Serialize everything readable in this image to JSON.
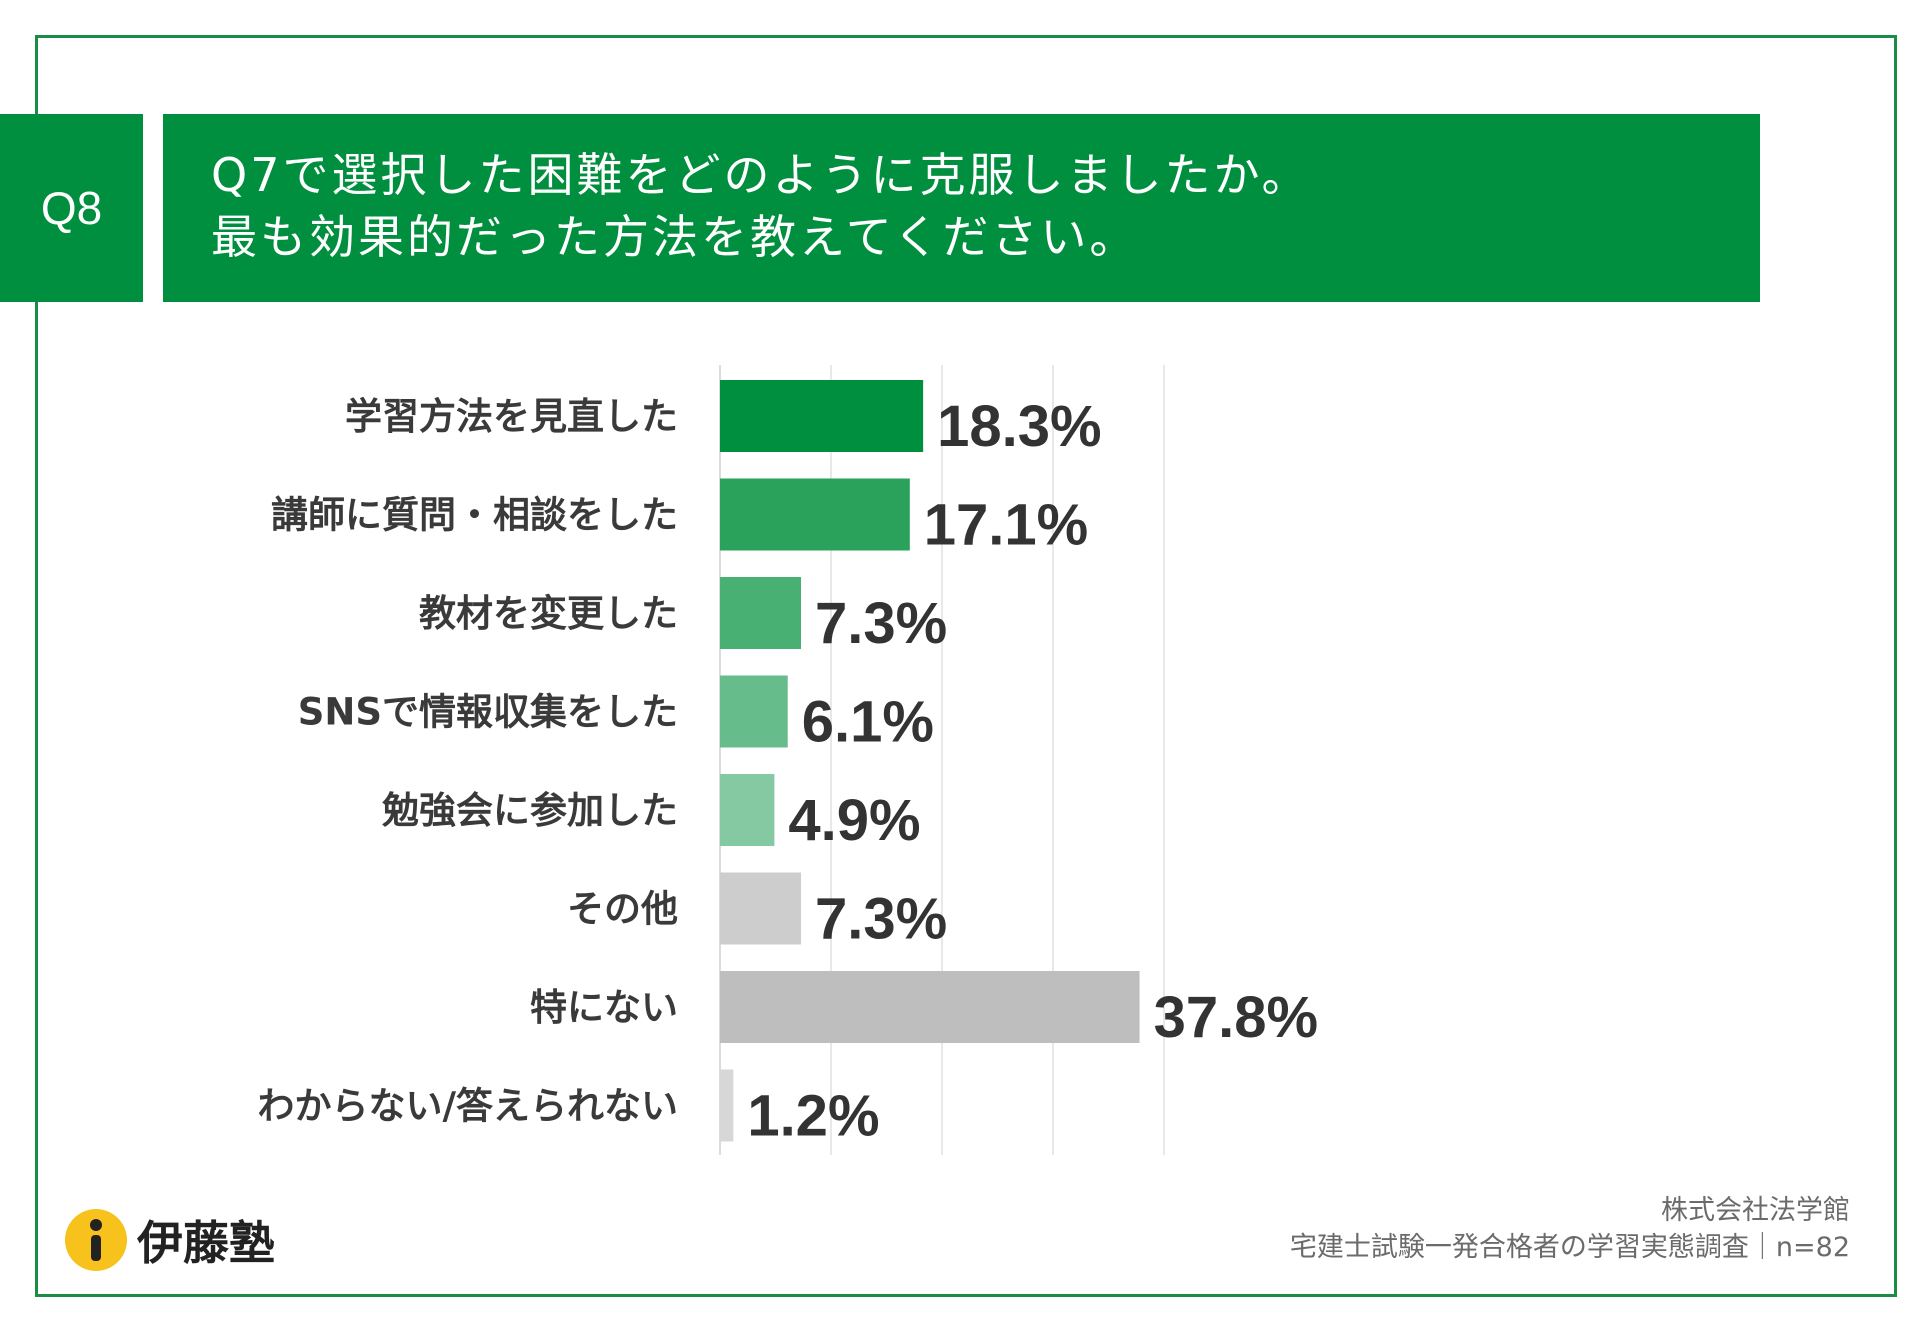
{
  "question": {
    "badge": "Q8",
    "line1": "Q7で選択した困難をどのように克服しましたか。",
    "line2": "最も効果的だった方法を教えてください。"
  },
  "chart_data": {
    "type": "bar",
    "orientation": "horizontal",
    "title": "Q7で選択した困難をどのように克服しましたか。最も効果的だった方法を教えてください。",
    "unit": "%",
    "xlim": [
      0,
      45
    ],
    "grid": true,
    "categories": [
      "学習方法を見直した",
      "講師に質問・相談をした",
      "教材を変更した",
      "SNSで情報収集をした",
      "勉強会に参加した",
      "その他",
      "特にない",
      "わからない/答えられない"
    ],
    "values": [
      18.3,
      17.1,
      7.3,
      6.1,
      4.9,
      7.3,
      37.8,
      1.2
    ],
    "labels": [
      "18.3%",
      "17.1%",
      "7.3%",
      "6.1%",
      "4.9%",
      "7.3%",
      "37.8%",
      "1.2%"
    ],
    "colors": [
      "#008f3e",
      "#2ba25b",
      "#49b073",
      "#66bc8b",
      "#84c9a1",
      "#cdcdcd",
      "#bebebe",
      "#d7d7d7"
    ]
  },
  "logo": {
    "text": "伊藤塾",
    "icon": "info-i-icon"
  },
  "credit": {
    "line1": "株式会社法学館",
    "line2": "宅建士試験一発合格者の学習実態調査｜n=82"
  }
}
